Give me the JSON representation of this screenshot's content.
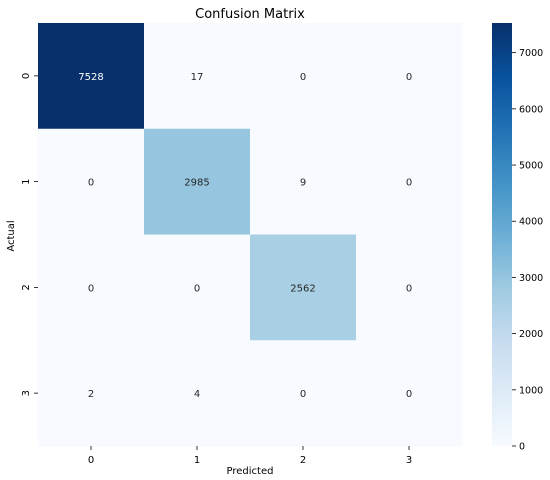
{
  "chart_data": {
    "type": "heatmap",
    "title": "Confusion Matrix",
    "xlabel": "Predicted",
    "ylabel": "Actual",
    "x_categories": [
      "0",
      "1",
      "2",
      "3"
    ],
    "y_categories": [
      "0",
      "1",
      "2",
      "3"
    ],
    "values": [
      [
        7528,
        17,
        0,
        0
      ],
      [
        0,
        2985,
        9,
        0
      ],
      [
        0,
        0,
        2562,
        0
      ],
      [
        2,
        4,
        0,
        0
      ]
    ],
    "colorbar": {
      "ticks": [
        0,
        1000,
        2000,
        3000,
        4000,
        5000,
        6000,
        7000
      ],
      "range": [
        0,
        7528
      ]
    },
    "colormap": {
      "name": "Blues",
      "stops": [
        "#f7fbff",
        "#deebf7",
        "#c6dbef",
        "#9ecae1",
        "#6baed6",
        "#4292c6",
        "#2171b5",
        "#08519c",
        "#08306b"
      ]
    }
  }
}
